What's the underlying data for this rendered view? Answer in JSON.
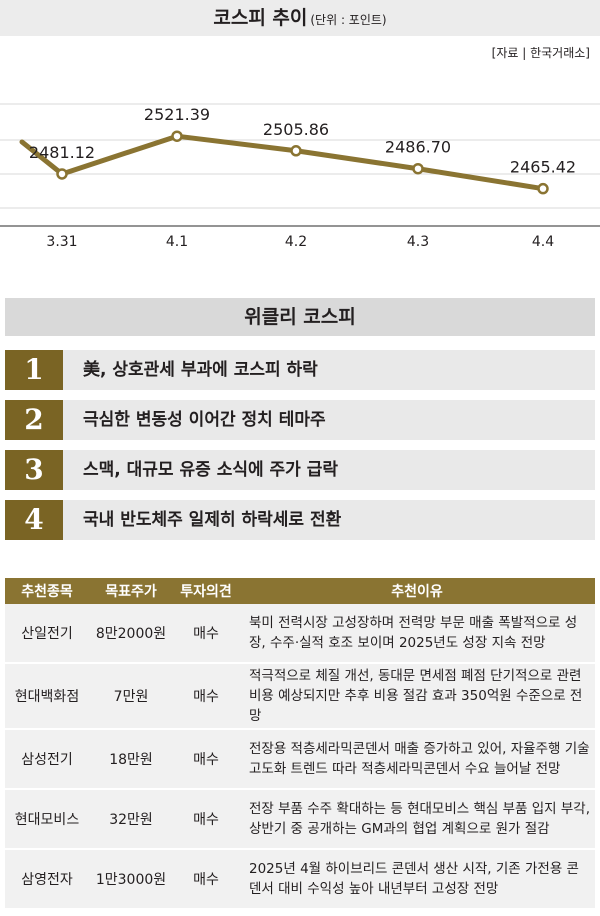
{
  "header": {
    "title": "코스피 추이",
    "unit": "(단위 : 포인트)",
    "source": "[자료 | 한국거래소]"
  },
  "chart_data": {
    "type": "line",
    "title": "코스피 추이",
    "unit": "(단위 : 포인트)",
    "categories": [
      "3.31",
      "4.1",
      "4.2",
      "4.3",
      "4.4"
    ],
    "values": [
      2481.12,
      2521.39,
      2505.86,
      2486.7,
      2465.42
    ],
    "value_labels": [
      "2481.12",
      "2521.39",
      "2505.86",
      "2486.70",
      "2465.42"
    ],
    "ylim": [
      2400,
      2560
    ],
    "line_color": "#8a7432",
    "grid": true
  },
  "weekly": {
    "title": "위클리 코스피",
    "items": [
      {
        "rank": "1",
        "text": "美, 상호관세 부과에 코스피 하락"
      },
      {
        "rank": "2",
        "text": "극심한 변동성 이어간 정치 테마주"
      },
      {
        "rank": "3",
        "text": "스맥, 대규모 유증 소식에 주가 급락"
      },
      {
        "rank": "4",
        "text": "국내 반도체주 일제히 하락세로 전환"
      }
    ]
  },
  "table": {
    "headers": [
      "추천종목",
      "목표주가",
      "투자의견",
      "추천이유"
    ],
    "rows": [
      {
        "stock": "산일전기",
        "target": "8만2000원",
        "opinion": "매수",
        "reason": "북미 전력시장 고성장하며 전력망 부문 매출 폭발적으로 성장, 수주·실적 호조 보이며 2025년도 성장 지속 전망"
      },
      {
        "stock": "현대백화점",
        "target": "7만원",
        "opinion": "매수",
        "reason": "적극적으로 체질 개선, 동대문 면세점 폐점 단기적으로 관련 비용 예상되지만 추후 비용 절감 효과 350억원 수준으로 전망"
      },
      {
        "stock": "삼성전기",
        "target": "18만원",
        "opinion": "매수",
        "reason": "전장용 적층세라믹콘덴서 매출 증가하고 있어, 자율주행 기술 고도화 트렌드 따라 적층세라믹콘덴서 수요 늘어날 전망"
      },
      {
        "stock": "현대모비스",
        "target": "32만원",
        "opinion": "매수",
        "reason": "전장 부품 수주 확대하는 등 현대모비스 핵심 부품 입지 부각, 상반기 중 공개하는 GM과의 협업 계획으로 원가 절감"
      },
      {
        "stock": "삼영전자",
        "target": "1만3000원",
        "opinion": "매수",
        "reason": "2025년 4월 하이브리드 콘덴서 생산 시작, 기존 가전용 콘덴서 대비 수익성 높아 내년부터 고성장 전망"
      }
    ]
  }
}
